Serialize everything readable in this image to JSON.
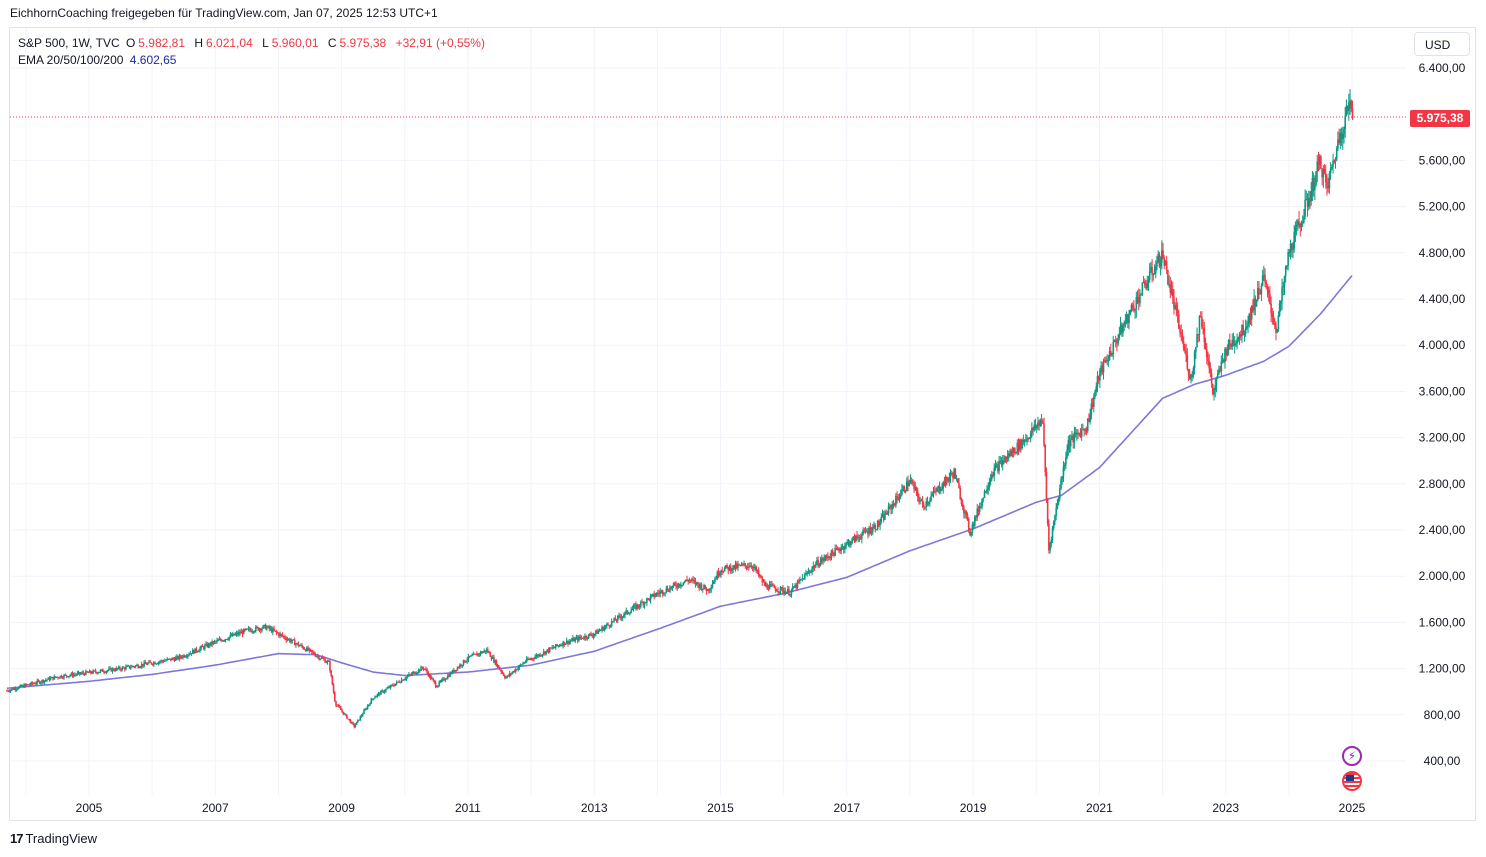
{
  "attribution": "EichhornCoaching freigegeben für TradingView.com, Jan 07, 2025 12:53 UTC+1",
  "legend": {
    "symbol": "S&P 500, 1W, TVC",
    "open_label": "O",
    "open": "5.982,81",
    "high_label": "H",
    "high": "6.021,04",
    "low_label": "L",
    "low": "5.960,01",
    "close_label": "C",
    "close": "5.975,38",
    "change": "+32,91 (+0,55%)",
    "ema_label": "EMA 20/50/100/200",
    "ema_value": "4.602,65"
  },
  "currency": "USD",
  "last_price_label": "5.975,38",
  "footer": {
    "logo_text": "TradingView",
    "logo_mark": "17"
  },
  "colors": {
    "up": "#089981",
    "down": "#f23645",
    "ema": "#7e78d8",
    "grid": "#f0f3fa"
  },
  "icons": [
    "lightning-icon",
    "us-flag-icon",
    "tradingview-logo-icon"
  ],
  "chart_data": {
    "type": "candlestick",
    "title": "S&P 500, 1W, TVC",
    "ylim": [
      400,
      6400
    ],
    "y_ticks": [
      400,
      800,
      1200,
      1600,
      2000,
      2400,
      2800,
      3200,
      3600,
      4000,
      4400,
      4800,
      5200,
      5600,
      6400
    ],
    "y_tick_labels": [
      "400,00",
      "800,00",
      "1.200,00",
      "1.600,00",
      "2.000,00",
      "2.400,00",
      "2.800,00",
      "3.200,00",
      "3.600,00",
      "4.000,00",
      "4.400,00",
      "4.800,00",
      "5.200,00",
      "5.600,00",
      "6.400,00"
    ],
    "x_ticks": [
      2005,
      2007,
      2009,
      2011,
      2013,
      2015,
      2017,
      2019,
      2021,
      2023,
      2025
    ],
    "x_tick_labels": [
      "2005",
      "2007",
      "2009",
      "2011",
      "2013",
      "2015",
      "2017",
      "2019",
      "2021",
      "2023",
      "2025"
    ],
    "last_close": 5975.38,
    "price_path": [
      [
        2003.7,
        1010
      ],
      [
        2004.5,
        1130
      ],
      [
        2005.5,
        1200
      ],
      [
        2006.4,
        1290
      ],
      [
        2007.0,
        1430
      ],
      [
        2007.5,
        1530
      ],
      [
        2007.8,
        1560
      ],
      [
        2008.4,
        1380
      ],
      [
        2008.8,
        1250
      ],
      [
        2008.9,
        900
      ],
      [
        2009.2,
        700
      ],
      [
        2009.5,
        950
      ],
      [
        2010.0,
        1120
      ],
      [
        2010.3,
        1210
      ],
      [
        2010.5,
        1050
      ],
      [
        2011.0,
        1290
      ],
      [
        2011.3,
        1360
      ],
      [
        2011.6,
        1120
      ],
      [
        2011.9,
        1260
      ],
      [
        2012.5,
        1420
      ],
      [
        2013.0,
        1500
      ],
      [
        2013.5,
        1680
      ],
      [
        2014.0,
        1850
      ],
      [
        2014.5,
        1970
      ],
      [
        2014.8,
        1880
      ],
      [
        2015.0,
        2060
      ],
      [
        2015.5,
        2100
      ],
      [
        2015.7,
        1920
      ],
      [
        2016.1,
        1860
      ],
      [
        2016.5,
        2100
      ],
      [
        2017.0,
        2280
      ],
      [
        2017.5,
        2450
      ],
      [
        2018.0,
        2830
      ],
      [
        2018.2,
        2610
      ],
      [
        2018.7,
        2900
      ],
      [
        2018.95,
        2380
      ],
      [
        2019.3,
        2900
      ],
      [
        2019.9,
        3230
      ],
      [
        2020.1,
        3370
      ],
      [
        2020.2,
        2230
      ],
      [
        2020.5,
        3150
      ],
      [
        2020.8,
        3300
      ],
      [
        2021.0,
        3750
      ],
      [
        2021.5,
        4300
      ],
      [
        2021.9,
        4700
      ],
      [
        2022.0,
        4790
      ],
      [
        2022.45,
        3700
      ],
      [
        2022.6,
        4280
      ],
      [
        2022.8,
        3580
      ],
      [
        2023.0,
        3960
      ],
      [
        2023.3,
        4150
      ],
      [
        2023.6,
        4580
      ],
      [
        2023.8,
        4130
      ],
      [
        2024.0,
        4800
      ],
      [
        2024.3,
        5250
      ],
      [
        2024.5,
        5600
      ],
      [
        2024.6,
        5350
      ],
      [
        2024.8,
        5800
      ],
      [
        2024.95,
        6090
      ],
      [
        2025.02,
        5975
      ]
    ],
    "ema_path": [
      [
        2003.7,
        1030
      ],
      [
        2005.0,
        1090
      ],
      [
        2006.0,
        1150
      ],
      [
        2007.0,
        1230
      ],
      [
        2008.0,
        1330
      ],
      [
        2008.6,
        1320
      ],
      [
        2009.0,
        1250
      ],
      [
        2009.5,
        1170
      ],
      [
        2010.0,
        1140
      ],
      [
        2011.0,
        1170
      ],
      [
        2012.0,
        1230
      ],
      [
        2013.0,
        1350
      ],
      [
        2014.0,
        1540
      ],
      [
        2015.0,
        1740
      ],
      [
        2016.0,
        1850
      ],
      [
        2017.0,
        1990
      ],
      [
        2018.0,
        2220
      ],
      [
        2019.0,
        2410
      ],
      [
        2020.0,
        2640
      ],
      [
        2020.4,
        2700
      ],
      [
        2021.0,
        2940
      ],
      [
        2021.5,
        3240
      ],
      [
        2022.0,
        3540
      ],
      [
        2022.5,
        3660
      ],
      [
        2023.0,
        3740
      ],
      [
        2023.6,
        3860
      ],
      [
        2024.0,
        3990
      ],
      [
        2024.5,
        4270
      ],
      [
        2025.0,
        4603
      ]
    ]
  }
}
